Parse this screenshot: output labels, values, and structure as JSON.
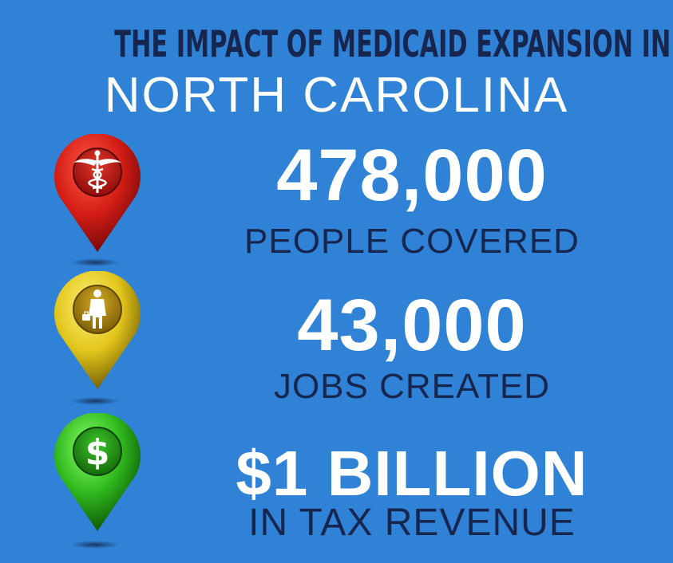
{
  "header": {
    "line1": "THE IMPACT OF MEDICAID EXPANSION IN",
    "line2": "NORTH CAROLINA"
  },
  "stats": [
    {
      "value": "478,000",
      "label": "PEOPLE COVERED",
      "icon": "caduceus-icon",
      "pin_color": "#d41d16"
    },
    {
      "value": "43,000",
      "label": "JOBS CREATED",
      "icon": "businessman-icon",
      "pin_color": "#e2c51b"
    },
    {
      "value": "$1 BILLION",
      "label": "IN TAX REVENUE",
      "icon": "dollar-icon",
      "pin_color": "#2fb81d"
    }
  ],
  "colors": {
    "background": "#2f82d6",
    "navy": "#16264f",
    "white": "#ffffff"
  }
}
